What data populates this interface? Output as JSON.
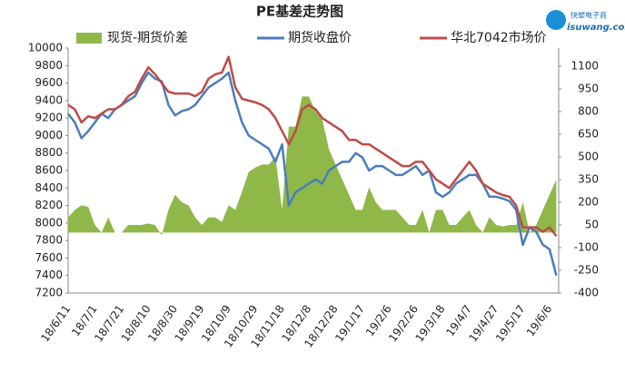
{
  "chart_data": {
    "type": "combo",
    "title": "PE基差走势图",
    "logo": {
      "name": "快塑电子商",
      "site": "isuwang.com"
    },
    "categories": [
      "18/6/11",
      null,
      null,
      null,
      "18/7/1",
      null,
      null,
      null,
      "18/7/21",
      null,
      null,
      null,
      "18/8/10",
      null,
      null,
      null,
      "18/8/30",
      null,
      null,
      null,
      "18/9/19",
      null,
      null,
      null,
      "18/10/9",
      null,
      null,
      null,
      "18/10/29",
      null,
      null,
      null,
      "18/11/18",
      null,
      null,
      null,
      "18/12/8",
      null,
      null,
      null,
      "18/12/28",
      null,
      null,
      null,
      "19/1/17",
      null,
      null,
      null,
      "19/2/6",
      null,
      null,
      null,
      "19/2/26",
      null,
      null,
      null,
      "19/3/18",
      null,
      null,
      null,
      "19/4/7",
      null,
      null,
      null,
      "19/4/27",
      null,
      null,
      null,
      "19/5/17",
      null,
      null,
      null,
      "19/6/6",
      null
    ],
    "series": [
      {
        "name": "现货-期货价差",
        "kind": "area",
        "axis": "y2",
        "color": "#8fb849",
        "values": [
          100,
          150,
          180,
          170,
          50,
          0,
          100,
          0,
          0,
          50,
          50,
          50,
          60,
          50,
          -20,
          150,
          250,
          200,
          180,
          100,
          50,
          100,
          100,
          70,
          180,
          150,
          270,
          400,
          430,
          450,
          450,
          500,
          150,
          700,
          700,
          900,
          900,
          800,
          750,
          550,
          450,
          350,
          250,
          150,
          150,
          300,
          200,
          150,
          150,
          150,
          100,
          50,
          50,
          150,
          0,
          150,
          150,
          50,
          50,
          100,
          150,
          50,
          0,
          100,
          50,
          40,
          50,
          50,
          200,
          0,
          50,
          150,
          250,
          350
        ]
      },
      {
        "name": "期货收盘价",
        "kind": "line",
        "color": "#4a7ebb",
        "values": [
          9250,
          9150,
          8970,
          9050,
          9150,
          9250,
          9200,
          9300,
          9350,
          9400,
          9450,
          9600,
          9720,
          9650,
          9620,
          9350,
          9230,
          9280,
          9300,
          9350,
          9450,
          9550,
          9600,
          9650,
          9720,
          9400,
          9150,
          9000,
          8950,
          8900,
          8850,
          8700,
          8900,
          8200,
          8350,
          8400,
          8450,
          8500,
          8450,
          8600,
          8650,
          8700,
          8700,
          8800,
          8750,
          8600,
          8650,
          8650,
          8600,
          8550,
          8550,
          8600,
          8650,
          8550,
          8600,
          8350,
          8300,
          8350,
          8450,
          8500,
          8550,
          8550,
          8450,
          8300,
          8300,
          8280,
          8250,
          8150,
          7750,
          7950,
          7900,
          7750,
          7700,
          7400
        ]
      },
      {
        "name": "华北7042市场价",
        "kind": "line",
        "color": "#be4b48",
        "values": [
          9350,
          9300,
          9150,
          9220,
          9200,
          9250,
          9300,
          9300,
          9350,
          9450,
          9500,
          9650,
          9780,
          9700,
          9600,
          9500,
          9480,
          9480,
          9480,
          9450,
          9500,
          9650,
          9700,
          9720,
          9900,
          9550,
          9420,
          9400,
          9380,
          9350,
          9300,
          9200,
          9050,
          8900,
          9050,
          9300,
          9350,
          9300,
          9200,
          9150,
          9100,
          9050,
          8950,
          8950,
          8900,
          8900,
          8850,
          8800,
          8750,
          8700,
          8650,
          8650,
          8700,
          8700,
          8600,
          8500,
          8450,
          8400,
          8500,
          8600,
          8700,
          8600,
          8450,
          8400,
          8350,
          8320,
          8300,
          8200,
          7950,
          7950,
          7950,
          7900,
          7950,
          7850
        ]
      }
    ],
    "ylim": [
      7200,
      10000
    ],
    "yticks": [
      7200,
      7400,
      7600,
      7800,
      8000,
      8200,
      8400,
      8600,
      8800,
      9000,
      9200,
      9400,
      9600,
      9800,
      10000
    ],
    "y2lim": [
      -400,
      1220
    ],
    "y2ticks": [
      -400,
      -250,
      -100,
      50,
      200,
      350,
      500,
      650,
      800,
      950,
      1100
    ],
    "grid": false
  }
}
